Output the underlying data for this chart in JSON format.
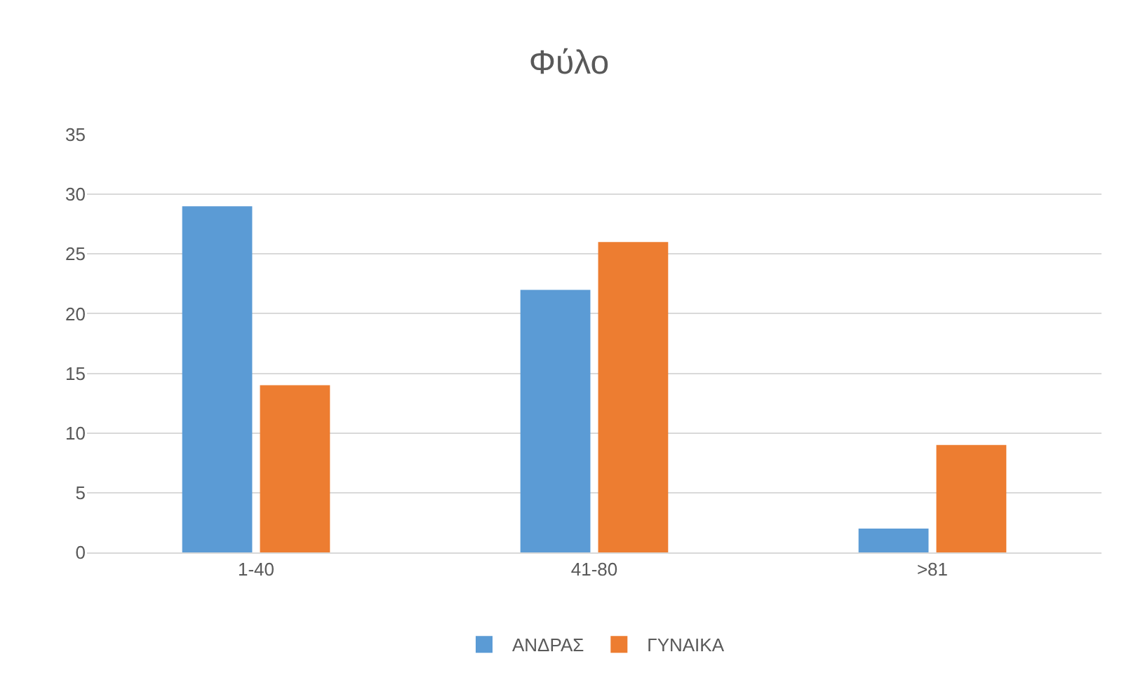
{
  "chart_data": {
    "type": "bar",
    "title": "Φύλο",
    "categories": [
      "1-40",
      "41-80",
      ">81"
    ],
    "series": [
      {
        "name": "ΑΝΔΡΑΣ",
        "color": "#5b9bd5",
        "values": [
          29,
          22,
          2
        ]
      },
      {
        "name": "ΓΥΝΑΙΚΑ",
        "color": "#ed7d31",
        "values": [
          14,
          26,
          9
        ]
      }
    ],
    "ylim": [
      0,
      35
    ],
    "yticks": [
      0,
      5,
      10,
      15,
      20,
      25,
      30,
      35
    ],
    "grid": "y",
    "legend": "bottom"
  }
}
